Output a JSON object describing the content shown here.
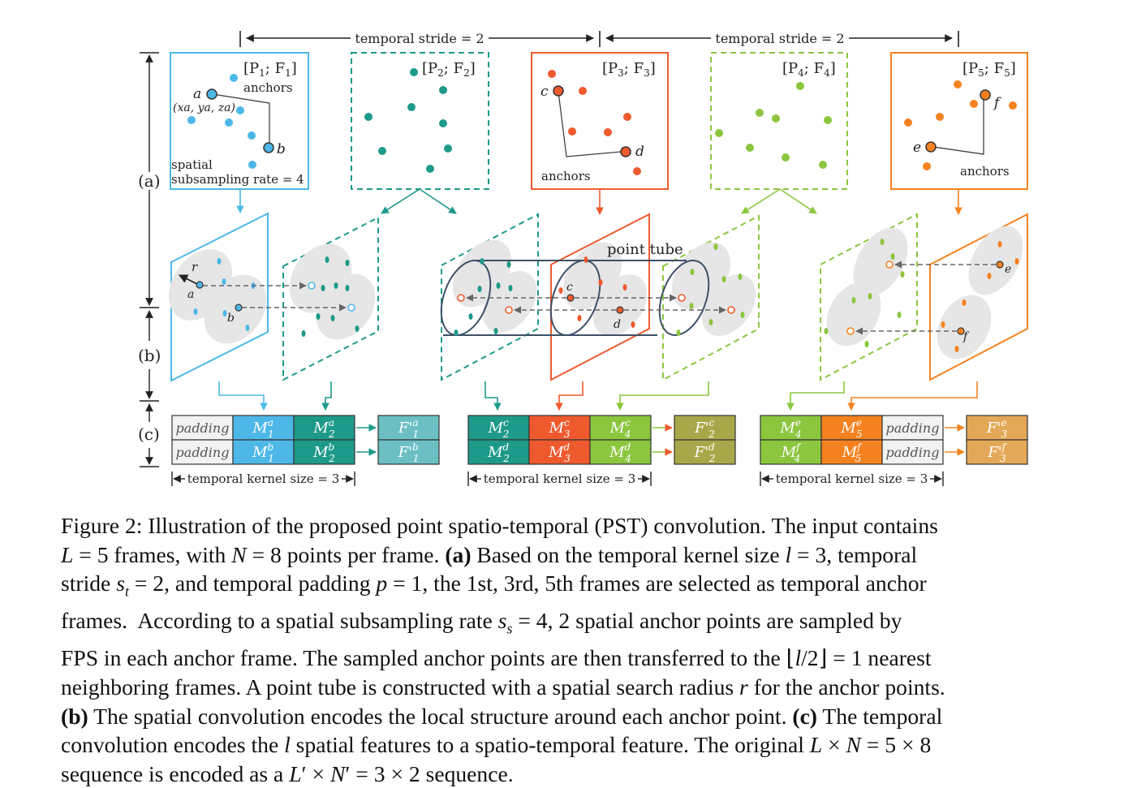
{
  "figure": {
    "stride_labels": [
      "temporal stride = 2",
      "temporal stride = 2"
    ],
    "frames": [
      {
        "label_pre": "[P",
        "label_i": "1",
        "label_mid": "; F",
        "label_j": "1",
        "label_post": "]",
        "color": "#4db8e8",
        "dashed": false
      },
      {
        "label_pre": "[P",
        "label_i": "2",
        "label_mid": "; F",
        "label_j": "2",
        "label_post": "]",
        "color": "#1e9a8a",
        "dashed": true
      },
      {
        "label_pre": "[P",
        "label_i": "3",
        "label_mid": "; F",
        "label_j": "3",
        "label_post": "]",
        "color": "#ee5a2e",
        "dashed": false
      },
      {
        "label_pre": "[P",
        "label_i": "4",
        "label_mid": "; F",
        "label_j": "4",
        "label_post": "]",
        "color": "#8cc63f",
        "dashed": true
      },
      {
        "label_pre": "[P",
        "label_i": "5",
        "label_mid": "; F",
        "label_j": "5",
        "label_post": "]",
        "color": "#f58220",
        "dashed": false
      }
    ],
    "anchor_text": "anchors",
    "spatial_text_1": "spatial",
    "spatial_text_2": "subsampling rate = 4",
    "coord_label": "(x",
    "coord_full": "(xa, ya, za)",
    "point_labels": {
      "a": "a",
      "b": "b",
      "c": "c",
      "d": "d",
      "e": "e",
      "f": "f"
    },
    "radius_label": "r",
    "point_tube_label": "point tube",
    "row_labels": {
      "a": "(a)",
      "b": "(b)",
      "c": "(c)"
    },
    "kernel_label": "temporal kernel size = 3",
    "padding_label": "padding",
    "groups": [
      {
        "rows": [
          {
            "cells": [
              {
                "text": "padding",
                "sub": "",
                "sup": "",
                "color": "#f2f2f2",
                "pad": true
              },
              {
                "text": "M",
                "sub": "1",
                "sup": "a",
                "color": "#4db8e8"
              },
              {
                "text": "M",
                "sub": "2",
                "sup": "a",
                "color": "#1e9a8a"
              }
            ],
            "out": {
              "text": "F'",
              "sub": "1",
              "sup": "a",
              "color": "#6cc0c4"
            }
          },
          {
            "cells": [
              {
                "text": "padding",
                "sub": "",
                "sup": "",
                "color": "#f2f2f2",
                "pad": true
              },
              {
                "text": "M",
                "sub": "1",
                "sup": "b",
                "color": "#4db8e8"
              },
              {
                "text": "M",
                "sub": "2",
                "sup": "b",
                "color": "#1e9a8a"
              }
            ],
            "out": {
              "text": "F'",
              "sub": "1",
              "sup": "b",
              "color": "#6cc0c4"
            }
          }
        ]
      },
      {
        "rows": [
          {
            "cells": [
              {
                "text": "M",
                "sub": "2",
                "sup": "c",
                "color": "#1e9a8a"
              },
              {
                "text": "M",
                "sub": "3",
                "sup": "c",
                "color": "#ee5a2e"
              },
              {
                "text": "M",
                "sub": "4",
                "sup": "c",
                "color": "#8cc63f"
              }
            ],
            "out": {
              "text": "F'",
              "sub": "2",
              "sup": "c",
              "color": "#a8a84a"
            }
          },
          {
            "cells": [
              {
                "text": "M",
                "sub": "2",
                "sup": "d",
                "color": "#1e9a8a"
              },
              {
                "text": "M",
                "sub": "3",
                "sup": "d",
                "color": "#ee5a2e"
              },
              {
                "text": "M",
                "sub": "4",
                "sup": "d",
                "color": "#8cc63f"
              }
            ],
            "out": {
              "text": "F'",
              "sub": "2",
              "sup": "d",
              "color": "#a8a84a"
            }
          }
        ]
      },
      {
        "rows": [
          {
            "cells": [
              {
                "text": "M",
                "sub": "4",
                "sup": "e",
                "color": "#8cc63f"
              },
              {
                "text": "M",
                "sub": "5",
                "sup": "e",
                "color": "#f58220"
              },
              {
                "text": "padding",
                "sub": "",
                "sup": "",
                "color": "#f2f2f2",
                "pad": true
              }
            ],
            "out": {
              "text": "F'",
              "sub": "3",
              "sup": "e",
              "color": "#e3a857"
            }
          },
          {
            "cells": [
              {
                "text": "M",
                "sub": "4",
                "sup": "f",
                "color": "#8cc63f"
              },
              {
                "text": "M",
                "sub": "5",
                "sup": "f",
                "color": "#f58220"
              },
              {
                "text": "padding",
                "sub": "",
                "sup": "",
                "color": "#f2f2f2",
                "pad": true
              }
            ],
            "out": {
              "text": "F'",
              "sub": "3",
              "sup": "f",
              "color": "#e3a857"
            }
          }
        ]
      }
    ]
  },
  "caption": {
    "lines": [
      "Figure 2: Illustration of the proposed point spatio-temporal (PST) convolution. The input contains",
      "L = 5 frames, with N = 8 points per frame. (a) Based on the temporal kernel size l = 3, temporal",
      "stride st = 2, and temporal padding p = 1, the 1st, 3rd, 5th frames are selected as temporal anchor",
      "frames.  According to a spatial subsampling rate ss = 4, 2 spatial anchor points are sampled by",
      "FPS in each anchor frame. The sampled anchor points are then transferred to the ⌊l/2⌋ = 1 nearest",
      "neighboring frames. A point tube is constructed with a spatial search radius r for the anchor points.",
      "(b) The spatial convolution encodes the local structure around each anchor point. (c) The temporal",
      "convolution encodes the l spatial features to a spatio-temporal feature. The original L × N = 5 × 8",
      "sequence is encoded as a L′ × N′ = 3 × 2 sequence."
    ]
  }
}
